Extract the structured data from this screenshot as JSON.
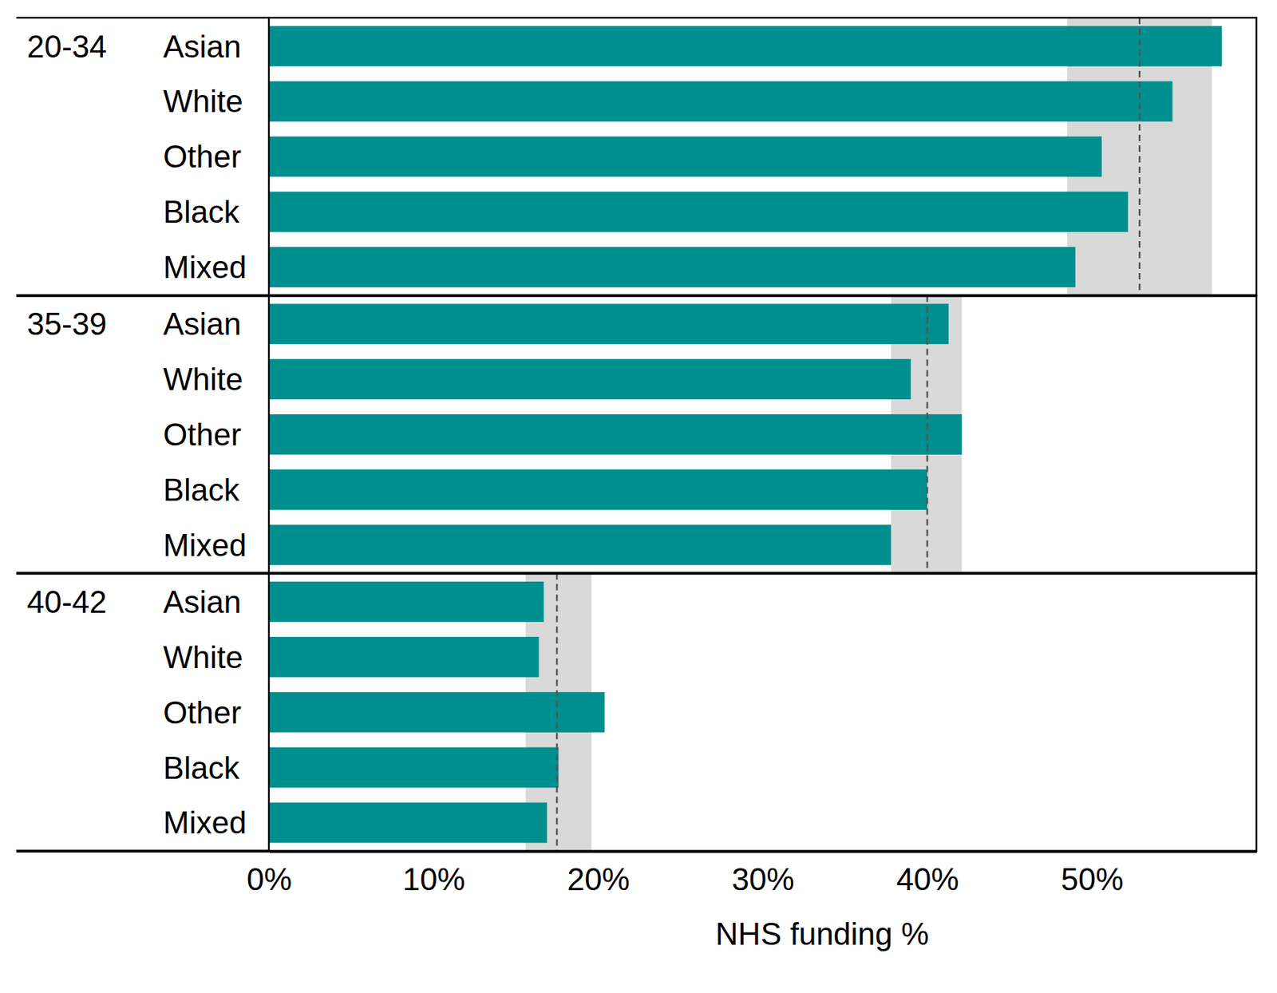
{
  "chart_data": [
    {
      "type": "bar",
      "orientation": "horizontal",
      "title": "20-34",
      "categories": [
        "Asian",
        "White",
        "Other",
        "Black",
        "Mixed"
      ],
      "values": [
        57.9,
        54.9,
        50.6,
        52.2,
        49.0
      ],
      "average": 52.9,
      "average_range": [
        48.5,
        57.3
      ],
      "color": "#008f8f",
      "xlim": [
        0,
        60
      ],
      "tick_labels": false
    },
    {
      "type": "bar",
      "orientation": "horizontal",
      "title": "35-39",
      "categories": [
        "Asian",
        "White",
        "Other",
        "Black",
        "Mixed"
      ],
      "values": [
        41.3,
        39.0,
        42.1,
        40.0,
        37.8
      ],
      "average": 40.0,
      "average_range": [
        37.8,
        42.1
      ],
      "color": "#008f8f",
      "xlim": [
        0,
        60
      ],
      "tick_labels": false
    },
    {
      "type": "bar",
      "orientation": "horizontal",
      "title": "40-42",
      "categories": [
        "Asian",
        "White",
        "Other",
        "Black",
        "Mixed"
      ],
      "values": [
        16.7,
        16.4,
        20.4,
        17.6,
        16.9
      ],
      "average": 17.5,
      "average_range": [
        15.6,
        19.6
      ],
      "color": "#008f8f",
      "xlim": [
        0,
        60
      ],
      "xticks": [
        {
          "value": 0,
          "label": "0%"
        },
        {
          "value": 10,
          "label": "10%"
        },
        {
          "value": 20,
          "label": "20%"
        },
        {
          "value": 30,
          "label": "30%"
        },
        {
          "value": 40,
          "label": "40%"
        },
        {
          "value": 50,
          "label": "50%"
        }
      ],
      "x_label": "NHS funding %"
    }
  ]
}
